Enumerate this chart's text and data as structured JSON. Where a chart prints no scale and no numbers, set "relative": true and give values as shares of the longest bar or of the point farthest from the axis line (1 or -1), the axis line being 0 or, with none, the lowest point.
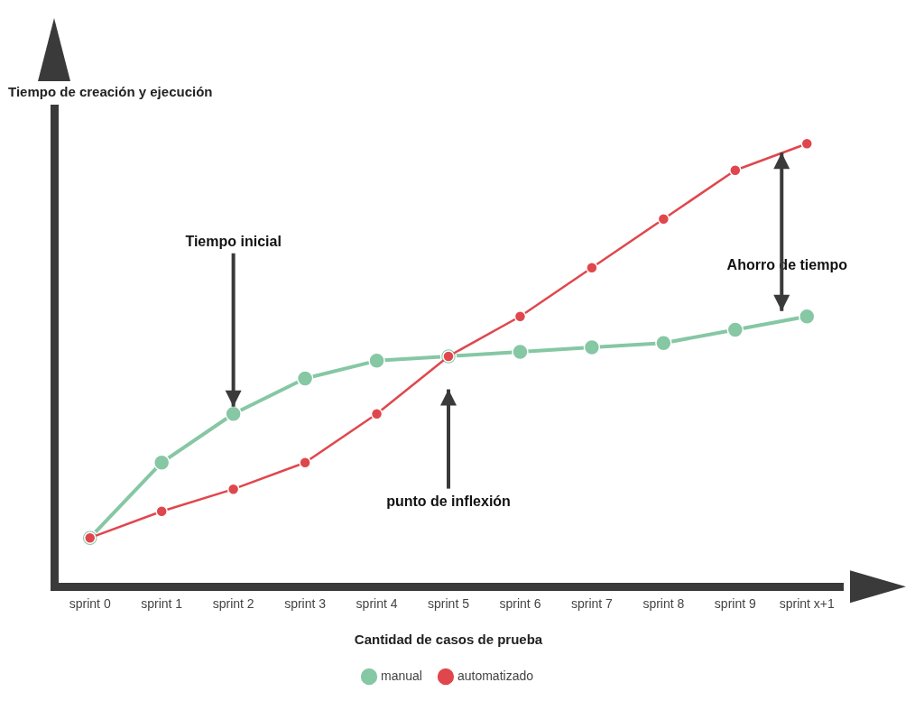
{
  "chart_data": {
    "type": "line",
    "relative": true,
    "ylabel": "Tiempo de creación y ejecución",
    "xlabel": "Cantidad de casos de prueba",
    "categories": [
      "sprint 0",
      "sprint 1",
      "sprint 2",
      "sprint 3",
      "sprint 4",
      "sprint 5",
      "sprint 6",
      "sprint 7",
      "sprint 8",
      "sprint 9",
      "sprint x+1"
    ],
    "series": [
      {
        "name": "manual",
        "color": "#86c7a4",
        "values": [
          0.11,
          0.28,
          0.39,
          0.47,
          0.51,
          0.52,
          0.53,
          0.54,
          0.55,
          0.58,
          0.61
        ]
      },
      {
        "name": "automatizado",
        "color": "#e0474c",
        "values": [
          0.11,
          0.17,
          0.22,
          0.28,
          0.39,
          0.52,
          0.61,
          0.72,
          0.83,
          0.94,
          1
        ]
      }
    ],
    "annotations": [
      {
        "text": "Tiempo inicial",
        "x": "sprint 2",
        "y": 0.39
      },
      "punto de inflexión",
      "Ahorro de tiempo"
    ],
    "legend": "bottom",
    "marker": "circle",
    "line_style": "solid"
  }
}
